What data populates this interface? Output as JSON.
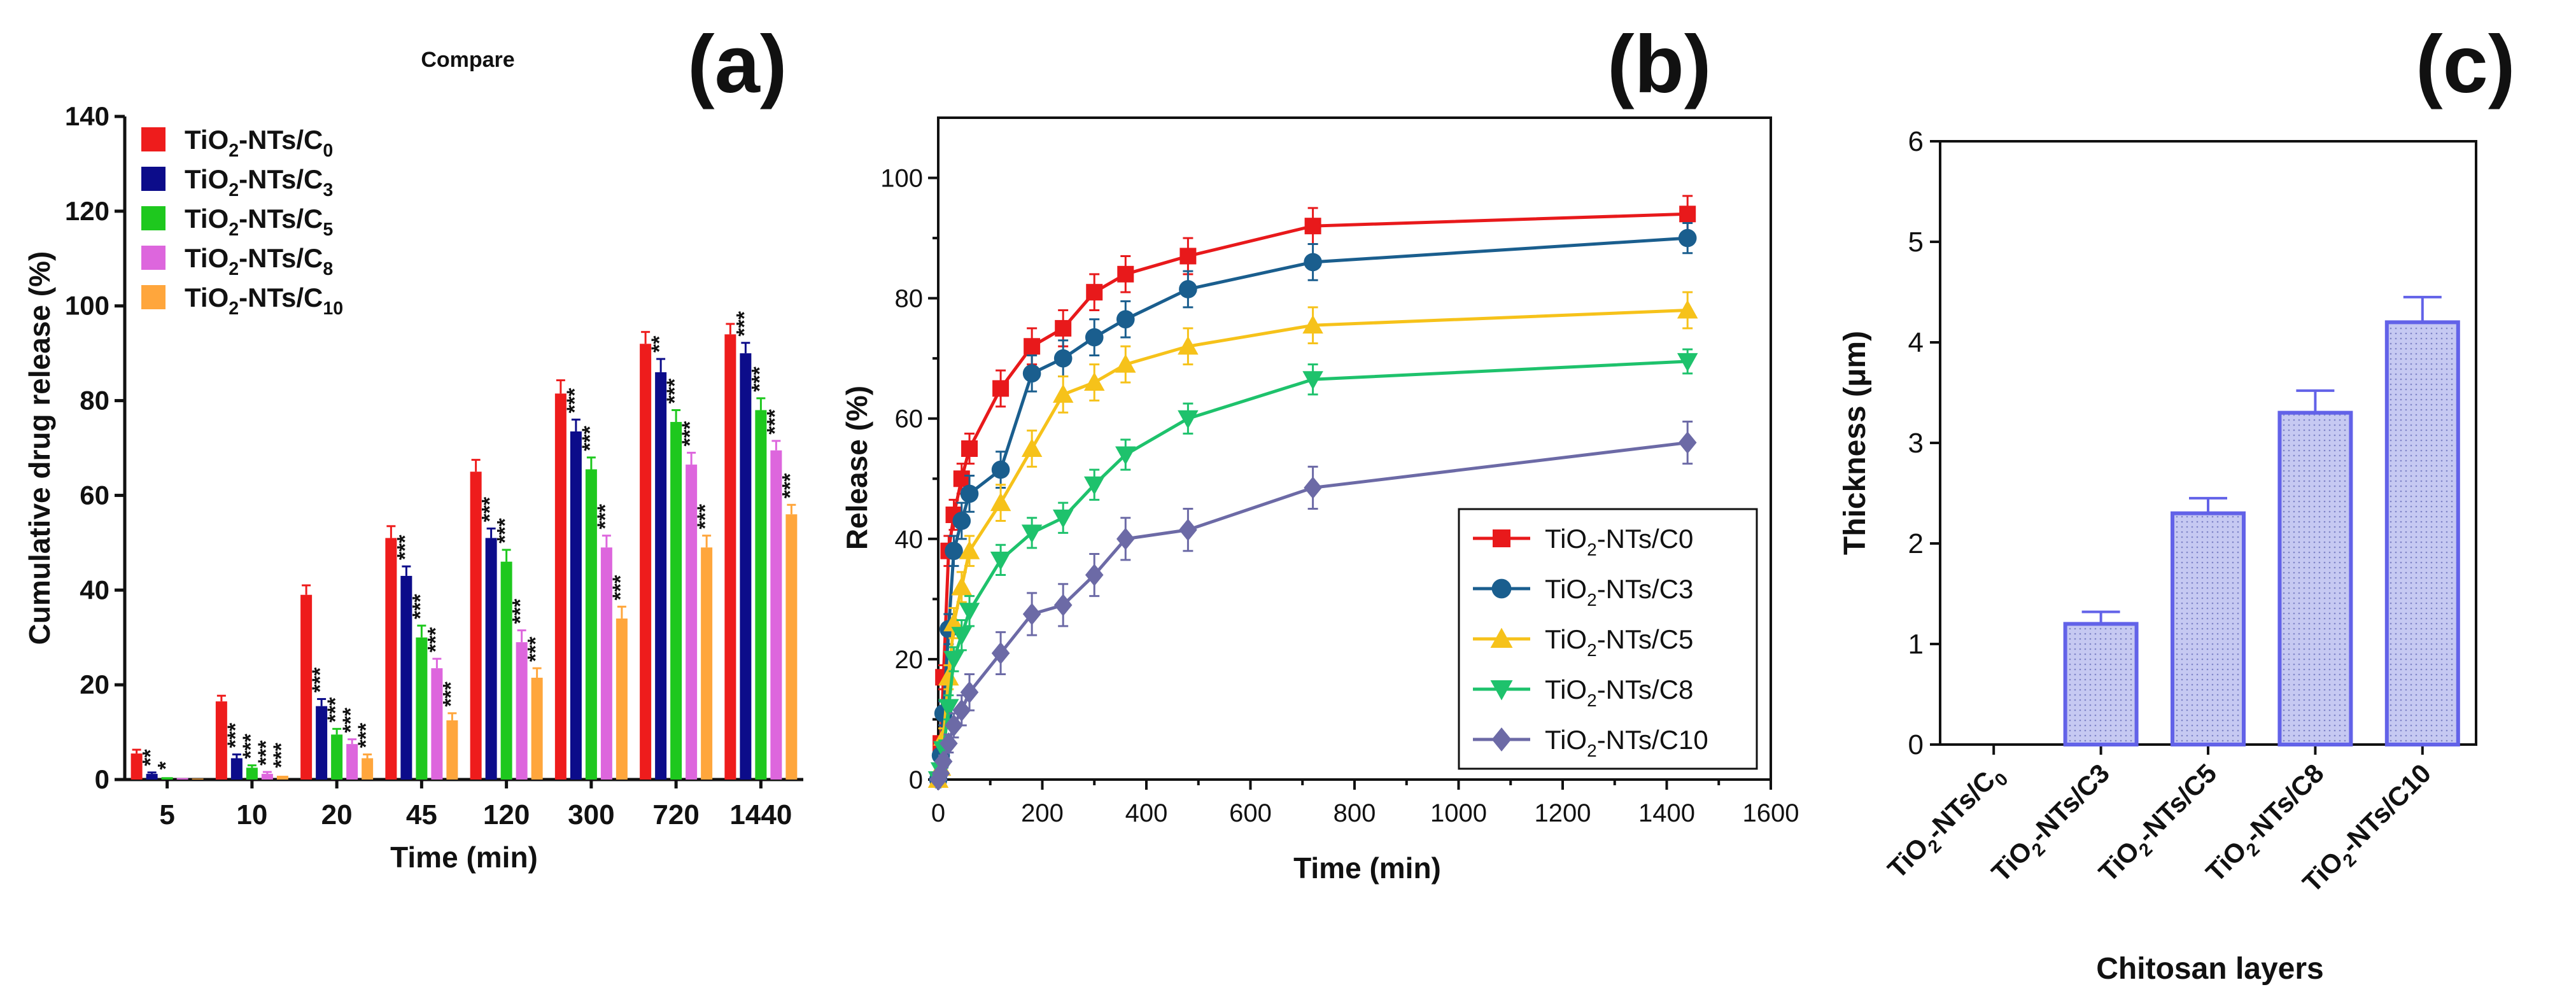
{
  "colors": {
    "c0": "#ee1c1c",
    "c3": "#0c0c8a",
    "c5": "#1ec81e",
    "c8": "#dd66dd",
    "c10": "#ffa63c",
    "b_c0": "#e8191b",
    "b_c3": "#1a5e8e",
    "b_c5": "#f6c21a",
    "b_c8": "#1ec26c",
    "b_c10": "#6c6aa6",
    "c_bar_fill": "#c6c9f2",
    "c_bar_edge": "#6262e8"
  },
  "chart_data": [
    {
      "id": "a",
      "panel_label": "(a)",
      "type": "bar",
      "title": "Compare",
      "xlabel": "Time (min)",
      "ylabel": "Cumulative drug release (%)",
      "ylim": [
        0,
        140
      ],
      "yticks": [
        "0",
        "20",
        "40",
        "60",
        "80",
        "100",
        "120",
        "140"
      ],
      "categories": [
        "5",
        "10",
        "20",
        "45",
        "120",
        "300",
        "720",
        "1440"
      ],
      "legend_position": "top-left",
      "series": [
        {
          "name_main": "TiO",
          "name_sub": "2",
          "name_mid": "-NTs/C",
          "name_sub2": "0",
          "color_key": "c0",
          "values": [
            5.5,
            16.5,
            39,
            51,
            65,
            81.5,
            92,
            94
          ],
          "errors": [
            0.8,
            1.2,
            2,
            2.5,
            2.5,
            2.8,
            2.5,
            2.2
          ],
          "sig": [
            "",
            "",
            "",
            "",
            "",
            "",
            "",
            ""
          ]
        },
        {
          "name_main": "TiO",
          "name_sub": "2",
          "name_mid": "-NTs/C",
          "name_sub2": "3",
          "color_key": "c3",
          "values": [
            1.2,
            4.5,
            15.5,
            43,
            51,
            73.5,
            86,
            90
          ],
          "errors": [
            0.3,
            0.8,
            1.5,
            2,
            2,
            2.5,
            2.8,
            2.2
          ],
          "sig": [
            "**",
            "***",
            "***",
            "***",
            "***",
            "***",
            "**",
            "***"
          ]
        },
        {
          "name_main": "TiO",
          "name_sub": "2",
          "name_mid": "-NTs/C",
          "name_sub2": "5",
          "color_key": "c5",
          "values": [
            0.5,
            2.5,
            9.5,
            30,
            46,
            65.5,
            75.5,
            78
          ],
          "errors": [
            0.2,
            0.5,
            1.2,
            2.5,
            2.5,
            2.5,
            2.5,
            2.5
          ],
          "sig": [
            "*",
            "***",
            "***",
            "***",
            "***",
            "***",
            "***",
            "***"
          ]
        },
        {
          "name_main": "TiO",
          "name_sub": "2",
          "name_mid": "-NTs/C",
          "name_sub2": "8",
          "color_key": "c8",
          "values": [
            0.3,
            1.2,
            7.5,
            23.5,
            29,
            49,
            66.5,
            69.5
          ],
          "errors": [
            0.2,
            0.4,
            1,
            2,
            2.5,
            2.5,
            2.5,
            2
          ],
          "sig": [
            "",
            "***",
            "***",
            "***",
            "***",
            "***",
            "***",
            "***"
          ]
        },
        {
          "name_main": "TiO",
          "name_sub": "2",
          "name_mid": "-NTs/C",
          "name_sub2": "10",
          "color_key": "c10",
          "values": [
            0.2,
            0.8,
            4.5,
            12.5,
            21.5,
            34,
            49,
            56
          ],
          "errors": [
            0.1,
            0.3,
            0.8,
            1.5,
            2,
            2.5,
            2.5,
            2
          ],
          "sig": [
            "",
            "***",
            "***",
            "***",
            "***",
            "***",
            "***",
            "***"
          ]
        }
      ]
    },
    {
      "id": "b",
      "panel_label": "(b)",
      "type": "line",
      "title": "",
      "xlabel": "Time (min)",
      "ylabel": "Release (%)",
      "xlim": [
        0,
        1600
      ],
      "ylim": [
        0,
        110
      ],
      "xticks": [
        "0",
        "200",
        "400",
        "600",
        "800",
        "1000",
        "1200",
        "1400",
        "1600"
      ],
      "yticks": [
        "0",
        "20",
        "40",
        "60",
        "80",
        "100"
      ],
      "x": [
        0,
        5,
        10,
        20,
        30,
        45,
        60,
        120,
        180,
        240,
        300,
        360,
        480,
        720,
        1440
      ],
      "legend_position": "bottom-right",
      "series": [
        {
          "name_main": "TiO",
          "name_sub": "2",
          "name_mid": "-NTs/C0",
          "color_key": "b_c0",
          "marker": "square",
          "values": [
            0,
            6,
            17,
            38,
            44,
            50,
            55,
            65,
            72,
            75,
            81,
            84,
            87,
            92,
            94
          ],
          "errors": [
            0,
            1,
            2,
            2.5,
            2.5,
            2.5,
            2.5,
            3,
            3,
            3,
            3,
            3,
            3,
            3,
            3
          ]
        },
        {
          "name_main": "TiO",
          "name_sub": "2",
          "name_mid": "-NTs/C3",
          "color_key": "b_c3",
          "marker": "circle",
          "values": [
            0,
            4,
            11,
            25,
            38,
            43,
            47.5,
            51.5,
            67.5,
            70,
            73.5,
            76.5,
            81.5,
            86,
            90
          ],
          "errors": [
            0,
            1,
            2,
            2.5,
            2.5,
            3,
            3,
            3,
            3,
            3,
            3,
            3,
            3,
            3,
            2.5
          ]
        },
        {
          "name_main": "TiO",
          "name_sub": "2",
          "name_mid": "-NTs/C5",
          "color_key": "b_c5",
          "marker": "triangle-up",
          "values": [
            0,
            2,
            7,
            17,
            26,
            32,
            38,
            46,
            55,
            64,
            66,
            69,
            72,
            75.5,
            78
          ],
          "errors": [
            0,
            1,
            1.5,
            2,
            2.5,
            2.5,
            2.5,
            3,
            3,
            3,
            3,
            3,
            3,
            3,
            3
          ]
        },
        {
          "name_main": "TiO",
          "name_sub": "2",
          "name_mid": "-NTs/C8",
          "color_key": "b_c8",
          "marker": "triangle-down",
          "values": [
            0,
            1.5,
            5,
            12,
            20,
            24,
            28,
            36.5,
            41,
            43.5,
            49,
            54,
            60,
            66.5,
            69.5
          ],
          "errors": [
            0,
            1,
            1.5,
            2,
            2,
            2.5,
            2.5,
            2.5,
            2.5,
            2.5,
            2.5,
            2.5,
            2.5,
            2.5,
            2
          ]
        },
        {
          "name_main": "TiO",
          "name_sub": "2",
          "name_mid": "-NTs/C10",
          "color_key": "b_c10",
          "marker": "diamond",
          "values": [
            0,
            1,
            3,
            6,
            9,
            11.5,
            14.5,
            21,
            27.5,
            29,
            34,
            40,
            41.5,
            48.5,
            56
          ],
          "errors": [
            0,
            0.5,
            1,
            1.5,
            2,
            2.5,
            3,
            3.5,
            3.5,
            3.5,
            3.5,
            3.5,
            3.5,
            3.5,
            3.5
          ]
        }
      ]
    },
    {
      "id": "c",
      "panel_label": "(c)",
      "type": "bar",
      "title": "",
      "xlabel": "Chitosan layers",
      "ylabel": "Thickness (μm)",
      "ylim": [
        0,
        6
      ],
      "yticks": [
        "0",
        "1",
        "2",
        "3",
        "4",
        "5",
        "6"
      ],
      "categories": [
        {
          "main": "TiO",
          "sub": "2",
          "mid": "-NTs/C",
          "sub2": "0"
        },
        {
          "main": "TiO",
          "sub": "2",
          "mid": "-NTs/C3",
          "sub2": ""
        },
        {
          "main": "TiO",
          "sub": "2",
          "mid": "-NTs/C5",
          "sub2": ""
        },
        {
          "main": "TiO",
          "sub": "2",
          "mid": "-NTs/C8",
          "sub2": ""
        },
        {
          "main": "TiO",
          "sub": "2",
          "mid": "-NTs/C10",
          "sub2": ""
        }
      ],
      "values": [
        0,
        1.2,
        2.3,
        3.3,
        4.2
      ],
      "errors": [
        0,
        0.12,
        0.15,
        0.22,
        0.25
      ]
    }
  ]
}
